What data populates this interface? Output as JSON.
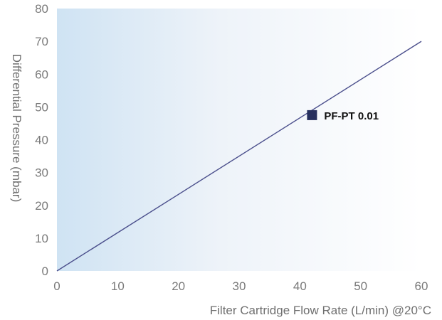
{
  "chart_data": {
    "type": "line",
    "xlabel": "Filter Cartridge Flow Rate (L/min) @20°C",
    "ylabel": "Differential Pressure (mbar)",
    "xlim": [
      0,
      60
    ],
    "ylim": [
      0,
      80
    ],
    "x_ticks": [
      0,
      10,
      20,
      30,
      40,
      50,
      60
    ],
    "y_ticks": [
      0,
      10,
      20,
      30,
      40,
      50,
      60,
      70,
      80
    ],
    "grid": false,
    "legend_position": "right of line, near y=47",
    "series": [
      {
        "name": "PF-PT 0.01",
        "x": [
          0,
          60
        ],
        "y": [
          0,
          70
        ],
        "color": "#4b4f8c"
      }
    ],
    "legend_marker": {
      "x": 42,
      "y": 47.5,
      "color": "#27305e"
    },
    "background_gradient": [
      "#cfe3f3",
      "#eef3f9",
      "#ffffff"
    ]
  }
}
